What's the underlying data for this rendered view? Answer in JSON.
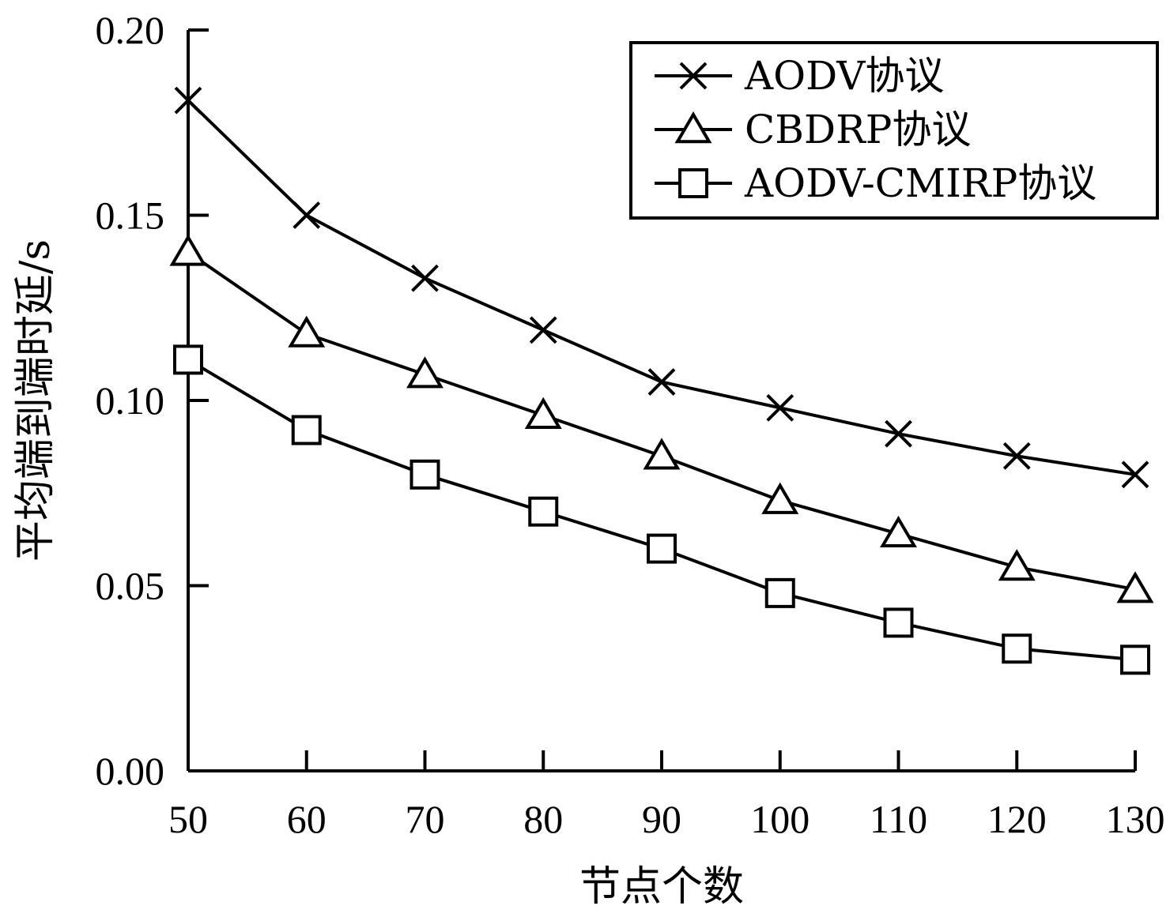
{
  "chart_data": {
    "type": "line",
    "title": "",
    "xlabel": "节点个数",
    "ylabel": "平均端到端时延/s",
    "x": [
      50,
      60,
      70,
      80,
      90,
      100,
      110,
      120,
      130
    ],
    "x_tick_labels": [
      "50",
      "60",
      "70",
      "80",
      "90",
      "100",
      "110",
      "120",
      "130"
    ],
    "xlim": [
      50,
      130
    ],
    "y_ticks": [
      0.0,
      0.05,
      0.1,
      0.15,
      0.2
    ],
    "y_tick_labels": [
      "0.00",
      "0.05",
      "0.10",
      "0.15",
      "0.20"
    ],
    "ylim": [
      0,
      0.2
    ],
    "grid": false,
    "legend_position": "top-right",
    "series": [
      {
        "name": "AODV协议",
        "marker": "x",
        "values": [
          0.181,
          0.15,
          0.133,
          0.119,
          0.105,
          0.098,
          0.091,
          0.085,
          0.08
        ]
      },
      {
        "name": "CBDRP协议",
        "marker": "triangle",
        "values": [
          0.14,
          0.118,
          0.107,
          0.096,
          0.085,
          0.073,
          0.064,
          0.055,
          0.049
        ]
      },
      {
        "name": "AODV-CMIRP协议",
        "marker": "square",
        "values": [
          0.111,
          0.092,
          0.08,
          0.07,
          0.06,
          0.048,
          0.04,
          0.033,
          0.03
        ]
      }
    ]
  }
}
